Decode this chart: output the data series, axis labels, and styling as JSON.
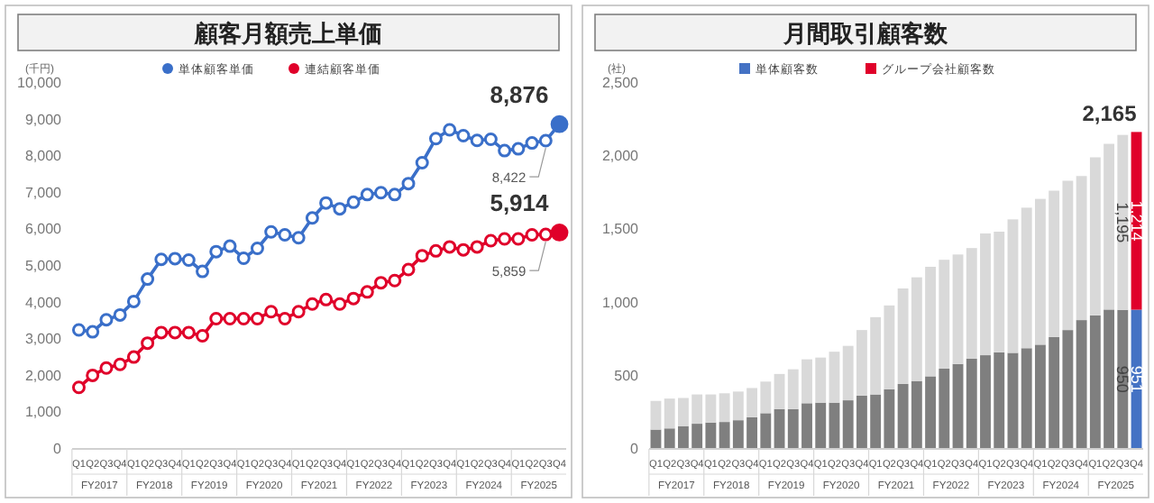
{
  "chart_data": [
    {
      "type": "line",
      "title": "顧客月額売上単価",
      "ylabel": "(千円)",
      "categories": [
        "Q1",
        "Q2",
        "Q3",
        "Q4",
        "Q1",
        "Q2",
        "Q3",
        "Q4",
        "Q1",
        "Q2",
        "Q3",
        "Q4",
        "Q1",
        "Q2",
        "Q3",
        "Q4",
        "Q1",
        "Q2",
        "Q3",
        "Q4",
        "Q1",
        "Q2",
        "Q3",
        "Q4",
        "Q1",
        "Q2",
        "Q3",
        "Q4",
        "Q1",
        "Q2",
        "Q3",
        "Q4",
        "Q1",
        "Q2",
        "Q3",
        "Q4"
      ],
      "annotations": [
        "FY2017",
        "FY2018",
        "FY2019",
        "FY2020",
        "FY2021",
        "FY2022",
        "FY2023",
        "FY2024",
        "FY2025"
      ],
      "series": [
        {
          "name": "単体顧客単価",
          "color": "#3a6fc9",
          "values": [
            3250,
            3200,
            3530,
            3660,
            4030,
            4640,
            5180,
            5200,
            5160,
            4850,
            5390,
            5540,
            5210,
            5480,
            5930,
            5850,
            5770,
            6310,
            6720,
            6560,
            6740,
            6950,
            7000,
            6950,
            7250,
            7820,
            8480,
            8720,
            8560,
            8430,
            8460,
            8150,
            8200,
            8360,
            8422,
            8876
          ],
          "value_labels": [
            null,
            null,
            null,
            null,
            null,
            null,
            null,
            null,
            null,
            null,
            null,
            null,
            null,
            null,
            null,
            null,
            null,
            null,
            null,
            null,
            null,
            null,
            null,
            null,
            null,
            null,
            null,
            null,
            null,
            null,
            null,
            null,
            null,
            null,
            "8,422",
            "8,876"
          ]
        },
        {
          "name": "連結顧客単価",
          "color": "#e0002a",
          "values": [
            1680,
            2010,
            2210,
            2310,
            2510,
            2890,
            3180,
            3180,
            3180,
            3090,
            3560,
            3560,
            3560,
            3560,
            3750,
            3560,
            3750,
            3960,
            4080,
            3960,
            4110,
            4290,
            4540,
            4600,
            4900,
            5280,
            5410,
            5520,
            5440,
            5520,
            5690,
            5740,
            5740,
            5850,
            5859,
            5914
          ],
          "value_labels": [
            null,
            null,
            null,
            null,
            null,
            null,
            null,
            null,
            null,
            null,
            null,
            null,
            null,
            null,
            null,
            null,
            null,
            null,
            null,
            null,
            null,
            null,
            null,
            null,
            null,
            null,
            null,
            null,
            null,
            null,
            null,
            null,
            null,
            null,
            "5,859",
            "5,914"
          ]
        }
      ],
      "ylim": [
        0,
        10000
      ],
      "yticks": [
        {
          "value": 0,
          "label": "0"
        },
        {
          "value": 1000,
          "label": "1,000"
        },
        {
          "value": 2000,
          "label": "2,000"
        },
        {
          "value": 3000,
          "label": "3,000"
        },
        {
          "value": 4000,
          "label": "4,000"
        },
        {
          "value": 5000,
          "label": "5,000"
        },
        {
          "value": 6000,
          "label": "6,000"
        },
        {
          "value": 7000,
          "label": "7,000"
        },
        {
          "value": 8000,
          "label": "8,000"
        },
        {
          "value": 9000,
          "label": "9,000"
        },
        {
          "value": 10000,
          "label": "10,000"
        }
      ],
      "grid": false,
      "legend": "top",
      "marker": "circle",
      "line_style": "solid"
    },
    {
      "type": "bar",
      "stacked": true,
      "title": "月間取引顧客数",
      "ylabel": "(社)",
      "categories": [
        "Q1",
        "Q2",
        "Q3",
        "Q4",
        "Q1",
        "Q2",
        "Q3",
        "Q4",
        "Q1",
        "Q2",
        "Q3",
        "Q4",
        "Q1",
        "Q2",
        "Q3",
        "Q4",
        "Q1",
        "Q2",
        "Q3",
        "Q4",
        "Q1",
        "Q2",
        "Q3",
        "Q4",
        "Q1",
        "Q2",
        "Q3",
        "Q4",
        "Q1",
        "Q2",
        "Q3",
        "Q4",
        "Q1",
        "Q2",
        "Q3",
        "Q4"
      ],
      "annotations": [
        "FY2017",
        "FY2018",
        "FY2019",
        "FY2020",
        "FY2021",
        "FY2022",
        "FY2023",
        "FY2024",
        "FY2025"
      ],
      "series": [
        {
          "name": "単体顧客数",
          "color": "#4472c4",
          "colors": [
            "#7f7f7f",
            "#7f7f7f",
            "#7f7f7f",
            "#7f7f7f",
            "#7f7f7f",
            "#7f7f7f",
            "#7f7f7f",
            "#7f7f7f",
            "#7f7f7f",
            "#7f7f7f",
            "#7f7f7f",
            "#7f7f7f",
            "#7f7f7f",
            "#7f7f7f",
            "#7f7f7f",
            "#7f7f7f",
            "#7f7f7f",
            "#7f7f7f",
            "#7f7f7f",
            "#7f7f7f",
            "#7f7f7f",
            "#7f7f7f",
            "#7f7f7f",
            "#7f7f7f",
            "#7f7f7f",
            "#7f7f7f",
            "#7f7f7f",
            "#7f7f7f",
            "#7f7f7f",
            "#7f7f7f",
            "#7f7f7f",
            "#7f7f7f",
            "#7f7f7f",
            "#7f7f7f",
            "#7f7f7f",
            "#4472c4"
          ],
          "values": [
            132,
            140,
            156,
            172,
            180,
            184,
            196,
            216,
            244,
            272,
            272,
            312,
            316,
            316,
            332,
            364,
            372,
            408,
            444,
            464,
            496,
            548,
            580,
            616,
            640,
            660,
            656,
            688,
            712,
            764,
            812,
            880,
            912,
            952,
            950,
            951
          ],
          "value_labels": [
            null,
            null,
            null,
            null,
            null,
            null,
            null,
            null,
            null,
            null,
            null,
            null,
            null,
            null,
            null,
            null,
            null,
            null,
            null,
            null,
            null,
            null,
            null,
            null,
            null,
            null,
            null,
            null,
            null,
            null,
            null,
            null,
            null,
            null,
            "950",
            "951"
          ]
        },
        {
          "name": "グループ会社顧客数",
          "color": "#e0002a",
          "colors": [
            "#d9d9d9",
            "#d9d9d9",
            "#d9d9d9",
            "#d9d9d9",
            "#d9d9d9",
            "#d9d9d9",
            "#d9d9d9",
            "#d9d9d9",
            "#d9d9d9",
            "#d9d9d9",
            "#d9d9d9",
            "#d9d9d9",
            "#d9d9d9",
            "#d9d9d9",
            "#d9d9d9",
            "#d9d9d9",
            "#d9d9d9",
            "#d9d9d9",
            "#d9d9d9",
            "#d9d9d9",
            "#d9d9d9",
            "#d9d9d9",
            "#d9d9d9",
            "#d9d9d9",
            "#d9d9d9",
            "#d9d9d9",
            "#d9d9d9",
            "#d9d9d9",
            "#d9d9d9",
            "#d9d9d9",
            "#d9d9d9",
            "#d9d9d9",
            "#d9d9d9",
            "#d9d9d9",
            "#d9d9d9",
            "#e0002a"
          ],
          "values": [
            196,
            204,
            192,
            200,
            192,
            196,
            196,
            200,
            216,
            240,
            272,
            300,
            308,
            348,
            372,
            448,
            528,
            572,
            652,
            708,
            748,
            744,
            748,
            756,
            832,
            824,
            912,
            960,
            996,
            1000,
            1020,
            984,
            1080,
            1132,
            1195,
            1214
          ],
          "value_labels": [
            null,
            null,
            null,
            null,
            null,
            null,
            null,
            null,
            null,
            null,
            null,
            null,
            null,
            null,
            null,
            null,
            null,
            null,
            null,
            null,
            null,
            null,
            null,
            null,
            null,
            null,
            null,
            null,
            null,
            null,
            null,
            null,
            null,
            null,
            "1,195",
            "1,214"
          ]
        }
      ],
      "totals": [
        null,
        null,
        null,
        null,
        null,
        null,
        null,
        null,
        null,
        null,
        null,
        null,
        null,
        null,
        null,
        null,
        null,
        null,
        null,
        null,
        null,
        null,
        null,
        null,
        null,
        null,
        null,
        null,
        null,
        null,
        null,
        null,
        null,
        null,
        null,
        "2,165"
      ],
      "ylim": [
        0,
        2500
      ],
      "yticks": [
        0,
        500,
        {
          "value": 1000,
          "label": "1,000"
        },
        {
          "value": 1500,
          "label": "1,500"
        },
        {
          "value": 2000,
          "label": "2,000"
        },
        {
          "value": 2500,
          "label": "2,500"
        }
      ],
      "grid": false,
      "legend": "top"
    }
  ]
}
